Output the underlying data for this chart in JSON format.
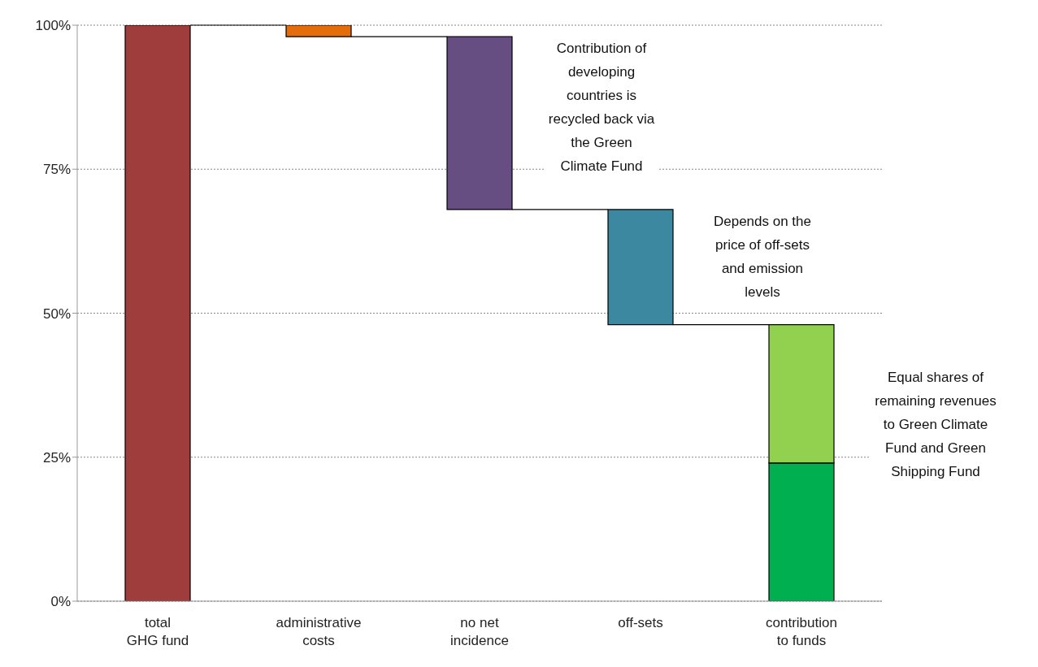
{
  "chart_data": {
    "type": "bar",
    "categories": [
      "total GHG fund",
      "administrative costs",
      "no net incidence",
      "off-sets",
      "contribution to funds"
    ],
    "series": [
      {
        "base": [
          0,
          98,
          68,
          48,
          0
        ],
        "colors": [
          "#9e3d3b",
          "#e46c0a",
          "#664d82",
          "#3b88a0",
          "#00b050"
        ],
        "values": [
          100,
          2,
          30,
          20,
          24
        ]
      },
      {
        "color": "#92d050",
        "base": [
          null,
          null,
          null,
          null,
          24
        ],
        "values": [
          null,
          null,
          null,
          null,
          24
        ]
      }
    ],
    "ylim": [
      0,
      100
    ],
    "yticks": [
      {
        "value": 0,
        "label": "0%"
      },
      {
        "value": 25,
        "label": "25%"
      },
      {
        "value": 50,
        "label": "50%"
      },
      {
        "value": 75,
        "label": "75%"
      },
      {
        "value": 100,
        "label": "100%"
      }
    ],
    "grid": "y",
    "annotations": [
      "Contribution of developing countries is recycled back via the Green Climate Fund",
      "Depends on the price of off-sets and emission levels",
      "Equal shares of remaining revenues to Green Climate Fund and Green Shipping Fund"
    ]
  }
}
